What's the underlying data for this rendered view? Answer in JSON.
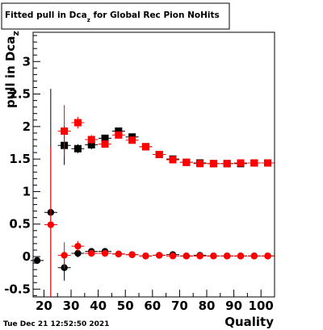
{
  "chart_data": {
    "type": "scatter",
    "title": "Fitted pull in Dca",
    "title_subscript": "z",
    "title_suffix": " for Global Rec Pion NoHits",
    "xlabel": "Quality",
    "ylabel": "pull in Dca",
    "ylabel_subscript": "z",
    "xlim": [
      16,
      105
    ],
    "ylim": [
      -0.62,
      3.45
    ],
    "x_ticks": [
      20,
      30,
      40,
      50,
      60,
      70,
      80,
      90,
      100
    ],
    "y_ticks": [
      -0.5,
      0,
      0.5,
      1,
      1.5,
      2,
      2.5,
      3
    ],
    "y_tick_labels": [
      "-0.5",
      "0",
      "0.5",
      "1",
      "1.5",
      "2",
      "2.5",
      "3"
    ],
    "grid": false,
    "legend": "none",
    "timestamp": "Tue Dec 21 12:52:50 2021",
    "series": [
      {
        "color": "#000000",
        "marker": "circle",
        "points": [
          {
            "x": 17.5,
            "y": -0.06,
            "err": 0.03
          },
          {
            "x": 22.5,
            "y": 0.68,
            "err": 1.9
          },
          {
            "x": 27.5,
            "y": -0.17,
            "err": 0.2
          },
          {
            "x": 32.5,
            "y": 0.05,
            "err": 0.06
          },
          {
            "x": 37.5,
            "y": 0.08,
            "err": 0.05
          },
          {
            "x": 42.5,
            "y": 0.08,
            "err": 0.04
          },
          {
            "x": 47.5,
            "y": 0.04,
            "err": 0.03
          },
          {
            "x": 52.5,
            "y": 0.03,
            "err": 0.02
          },
          {
            "x": 57.5,
            "y": 0.01,
            "err": 0.02
          },
          {
            "x": 62.5,
            "y": 0.02,
            "err": 0.02
          },
          {
            "x": 67.5,
            "y": 0.03,
            "err": 0.02
          },
          {
            "x": 72.5,
            "y": 0.01,
            "err": 0.02
          },
          {
            "x": 77.5,
            "y": 0.02,
            "err": 0.02
          },
          {
            "x": 82.5,
            "y": 0.01,
            "err": 0.02
          },
          {
            "x": 87.5,
            "y": 0.01,
            "err": 0.02
          },
          {
            "x": 92.5,
            "y": 0.01,
            "err": 0.02
          },
          {
            "x": 97.5,
            "y": 0.01,
            "err": 0.02
          },
          {
            "x": 102.5,
            "y": 0.01,
            "err": 0.02
          }
        ]
      },
      {
        "color": "#ff0000",
        "marker": "circle",
        "points": [
          {
            "x": 22.5,
            "y": 0.49,
            "err": 1.2
          },
          {
            "x": 27.5,
            "y": 0.02,
            "err": 0.2
          },
          {
            "x": 32.5,
            "y": 0.16,
            "err": 0.08
          },
          {
            "x": 37.5,
            "y": 0.05,
            "err": 0.05
          },
          {
            "x": 42.5,
            "y": 0.05,
            "err": 0.04
          },
          {
            "x": 47.5,
            "y": 0.04,
            "err": 0.03
          },
          {
            "x": 52.5,
            "y": 0.03,
            "err": 0.02
          },
          {
            "x": 57.5,
            "y": 0.01,
            "err": 0.02
          },
          {
            "x": 62.5,
            "y": 0.02,
            "err": 0.02
          },
          {
            "x": 67.5,
            "y": 0.01,
            "err": 0.02
          },
          {
            "x": 72.5,
            "y": 0.01,
            "err": 0.02
          },
          {
            "x": 77.5,
            "y": 0.01,
            "err": 0.02
          },
          {
            "x": 82.5,
            "y": 0.01,
            "err": 0.02
          },
          {
            "x": 87.5,
            "y": 0.01,
            "err": 0.02
          },
          {
            "x": 92.5,
            "y": 0.01,
            "err": 0.02
          },
          {
            "x": 97.5,
            "y": 0.01,
            "err": 0.02
          },
          {
            "x": 102.5,
            "y": 0.01,
            "err": 0.02
          }
        ]
      },
      {
        "color": "#000000",
        "marker": "square",
        "points": [
          {
            "x": 27.5,
            "y": 1.71,
            "err": 0.3
          },
          {
            "x": 32.5,
            "y": 1.66,
            "err": 0.07
          },
          {
            "x": 37.5,
            "y": 1.72,
            "err": 0.07
          },
          {
            "x": 42.5,
            "y": 1.82,
            "err": 0.05
          },
          {
            "x": 47.5,
            "y": 1.93,
            "err": 0.04
          },
          {
            "x": 52.5,
            "y": 1.84,
            "err": 0.03
          },
          {
            "x": 57.5,
            "y": 1.69,
            "err": 0.03
          },
          {
            "x": 62.5,
            "y": 1.57,
            "err": 0.02
          },
          {
            "x": 67.5,
            "y": 1.5,
            "err": 0.02
          },
          {
            "x": 72.5,
            "y": 1.45,
            "err": 0.02
          },
          {
            "x": 77.5,
            "y": 1.44,
            "err": 0.02
          },
          {
            "x": 82.5,
            "y": 1.43,
            "err": 0.02
          },
          {
            "x": 87.5,
            "y": 1.43,
            "err": 0.02
          },
          {
            "x": 92.5,
            "y": 1.43,
            "err": 0.02
          },
          {
            "x": 97.5,
            "y": 1.44,
            "err": 0.02
          },
          {
            "x": 102.5,
            "y": 1.44,
            "err": 0.02
          }
        ]
      },
      {
        "color": "#ff0000",
        "marker": "square",
        "points": [
          {
            "x": 27.5,
            "y": 1.93,
            "err": 0.4
          },
          {
            "x": 32.5,
            "y": 2.06,
            "err": 0.09
          },
          {
            "x": 37.5,
            "y": 1.8,
            "err": 0.07
          },
          {
            "x": 42.5,
            "y": 1.73,
            "err": 0.05
          },
          {
            "x": 47.5,
            "y": 1.87,
            "err": 0.04
          },
          {
            "x": 52.5,
            "y": 1.79,
            "err": 0.03
          },
          {
            "x": 57.5,
            "y": 1.69,
            "err": 0.03
          },
          {
            "x": 62.5,
            "y": 1.57,
            "err": 0.02
          },
          {
            "x": 67.5,
            "y": 1.49,
            "err": 0.02
          },
          {
            "x": 72.5,
            "y": 1.45,
            "err": 0.02
          },
          {
            "x": 77.5,
            "y": 1.43,
            "err": 0.02
          },
          {
            "x": 82.5,
            "y": 1.43,
            "err": 0.02
          },
          {
            "x": 87.5,
            "y": 1.43,
            "err": 0.02
          },
          {
            "x": 92.5,
            "y": 1.44,
            "err": 0.02
          },
          {
            "x": 97.5,
            "y": 1.44,
            "err": 0.02
          },
          {
            "x": 102.5,
            "y": 1.44,
            "err": 0.02
          }
        ]
      }
    ]
  }
}
